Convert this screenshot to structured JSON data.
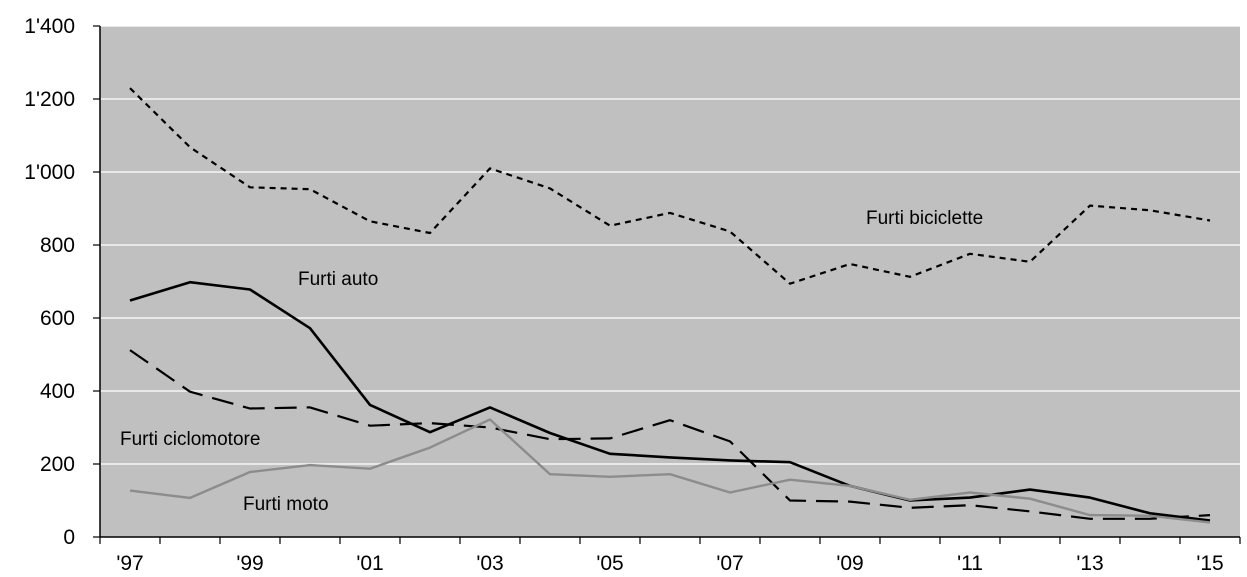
{
  "chart_data": {
    "type": "line",
    "x": [
      "'97",
      "'98",
      "'99",
      "'00",
      "'01",
      "'02",
      "'03",
      "'04",
      "'05",
      "'06",
      "'07",
      "'08",
      "'09",
      "'10",
      "'11",
      "'12",
      "'13",
      "'14",
      "'15"
    ],
    "xtick_labels": [
      "'97",
      "'99",
      "'01",
      "'03",
      "'05",
      "'07",
      "'09",
      "'11",
      "'13",
      "'15"
    ],
    "ytick_labels": [
      "0",
      "200",
      "400",
      "600",
      "800",
      "1'000",
      "1'200",
      "1'400"
    ],
    "ylim": [
      0,
      1400
    ],
    "grid": true,
    "legend": "none",
    "plot_background": "#c0c0c0",
    "gridline_color": "#ffffff",
    "series": [
      {
        "name": "Furti biciclette",
        "style": "dotted",
        "color": "#000000",
        "values": [
          1230,
          1068,
          958,
          953,
          865,
          833,
          1010,
          955,
          853,
          888,
          837,
          694,
          748,
          713,
          776,
          754,
          908,
          895,
          867
        ]
      },
      {
        "name": "Furti auto",
        "style": "solid",
        "color": "#000000",
        "values": [
          648,
          698,
          678,
          572,
          362,
          287,
          355,
          285,
          228,
          218,
          210,
          205,
          140,
          100,
          108,
          130,
          108,
          65,
          45
        ]
      },
      {
        "name": "Furti ciclomotore",
        "style": "dashed",
        "color": "#000000",
        "values": [
          512,
          398,
          352,
          355,
          305,
          312,
          300,
          268,
          270,
          320,
          262,
          100,
          97,
          80,
          87,
          70,
          50,
          50,
          60
        ]
      },
      {
        "name": "Furti moto",
        "style": "solid",
        "color": "#8c8c8c",
        "values": [
          127,
          107,
          178,
          197,
          187,
          245,
          322,
          172,
          165,
          172,
          122,
          157,
          140,
          102,
          122,
          105,
          60,
          58,
          40
        ]
      }
    ]
  }
}
